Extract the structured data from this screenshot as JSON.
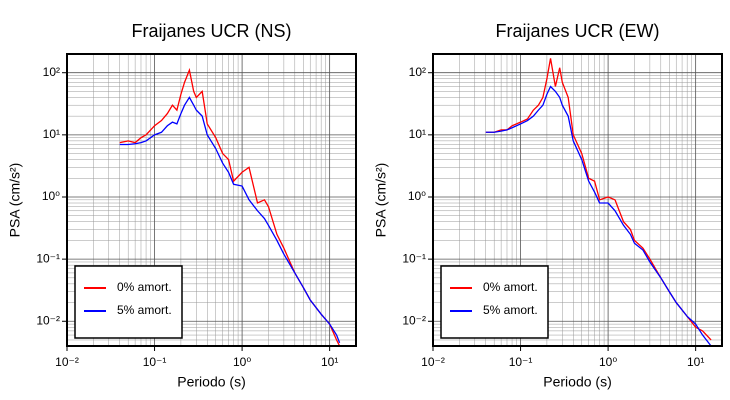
{
  "chart_data": [
    {
      "type": "line",
      "title": "Fraijanes UCR (NS)",
      "x_label": "Periodo (s)",
      "y_label": "PSA (cm/s²)",
      "xscale": "log",
      "yscale": "log",
      "grid": true,
      "minor_grid": true,
      "legend": "lower left",
      "xlim": [
        0.01,
        20
      ],
      "ylim": [
        0.004,
        200
      ],
      "xticks": [
        {
          "value": 0.01,
          "label": "10⁻²"
        },
        {
          "value": 0.1,
          "label": "10⁻¹"
        },
        {
          "value": 1,
          "label": "10⁰"
        },
        {
          "value": 10,
          "label": "10¹"
        }
      ],
      "yticks": [
        {
          "value": 0.01,
          "label": "10⁻²"
        },
        {
          "value": 0.1,
          "label": "10⁻¹"
        },
        {
          "value": 1,
          "label": "10⁰"
        },
        {
          "value": 10,
          "label": "10¹"
        },
        {
          "value": 100,
          "label": "10²"
        }
      ],
      "x": [
        0.04,
        0.05,
        0.06,
        0.07,
        0.08,
        0.1,
        0.12,
        0.14,
        0.16,
        0.18,
        0.2,
        0.22,
        0.25,
        0.28,
        0.3,
        0.35,
        0.4,
        0.5,
        0.6,
        0.7,
        0.8,
        1.0,
        1.2,
        1.5,
        1.8,
        2,
        2.5,
        3,
        4,
        5,
        6,
        8,
        10,
        12,
        13
      ],
      "series": [
        {
          "name": "0% amort.",
          "color": "#ff0000",
          "values": [
            7.5,
            8,
            7.5,
            9,
            10,
            14,
            17,
            22,
            30,
            25,
            45,
            70,
            110,
            50,
            40,
            50,
            15,
            9,
            5,
            4,
            1.8,
            2.5,
            3,
            0.8,
            0.9,
            0.7,
            0.25,
            0.15,
            0.06,
            0.035,
            0.022,
            0.013,
            0.009,
            0.005,
            0.004
          ]
        },
        {
          "name": "5% amort.",
          "color": "#0000ff",
          "values": [
            7,
            7,
            7.2,
            7.5,
            8,
            10,
            11,
            14,
            16,
            15,
            22,
            30,
            40,
            30,
            25,
            20,
            10,
            6,
            3.5,
            2.5,
            1.6,
            1.5,
            0.9,
            0.6,
            0.45,
            0.35,
            0.2,
            0.12,
            0.06,
            0.035,
            0.022,
            0.013,
            0.009,
            0.006,
            0.0045
          ]
        }
      ]
    },
    {
      "type": "line",
      "title": "Fraijanes UCR (EW)",
      "x_label": "Periodo (s)",
      "y_label": "PSA (cm/s²)",
      "xscale": "log",
      "yscale": "log",
      "grid": true,
      "minor_grid": true,
      "legend": "lower left",
      "xlim": [
        0.01,
        20
      ],
      "ylim": [
        0.004,
        200
      ],
      "xticks": [
        {
          "value": 0.01,
          "label": "10⁻²"
        },
        {
          "value": 0.1,
          "label": "10⁻¹"
        },
        {
          "value": 1,
          "label": "10⁰"
        },
        {
          "value": 10,
          "label": "10¹"
        }
      ],
      "yticks": [
        {
          "value": 0.01,
          "label": "10⁻²"
        },
        {
          "value": 0.1,
          "label": "10⁻¹"
        },
        {
          "value": 1,
          "label": "10⁰"
        },
        {
          "value": 10,
          "label": "10¹"
        },
        {
          "value": 100,
          "label": "10²"
        }
      ],
      "x": [
        0.04,
        0.05,
        0.06,
        0.07,
        0.08,
        0.1,
        0.12,
        0.14,
        0.16,
        0.18,
        0.2,
        0.22,
        0.25,
        0.28,
        0.3,
        0.35,
        0.4,
        0.5,
        0.6,
        0.7,
        0.8,
        1.0,
        1.2,
        1.5,
        1.8,
        2,
        2.5,
        3,
        4,
        5,
        6,
        8,
        10,
        12,
        15
      ],
      "series": [
        {
          "name": "0% amort.",
          "color": "#ff0000",
          "values": [
            11,
            11,
            12,
            12,
            14,
            16,
            18,
            25,
            30,
            40,
            80,
            170,
            60,
            120,
            70,
            40,
            10,
            5,
            2,
            1.8,
            0.9,
            1.0,
            0.9,
            0.4,
            0.3,
            0.2,
            0.15,
            0.1,
            0.05,
            0.03,
            0.02,
            0.012,
            0.008,
            0.007,
            0.005
          ]
        },
        {
          "name": "5% amort.",
          "color": "#0000ff",
          "values": [
            11,
            11,
            11.5,
            12,
            13,
            15,
            17,
            20,
            25,
            30,
            45,
            60,
            50,
            40,
            30,
            20,
            8,
            4,
            1.8,
            1.2,
            0.8,
            0.8,
            0.6,
            0.35,
            0.25,
            0.18,
            0.14,
            0.09,
            0.05,
            0.03,
            0.02,
            0.012,
            0.009,
            0.006,
            0.004
          ]
        }
      ]
    }
  ]
}
